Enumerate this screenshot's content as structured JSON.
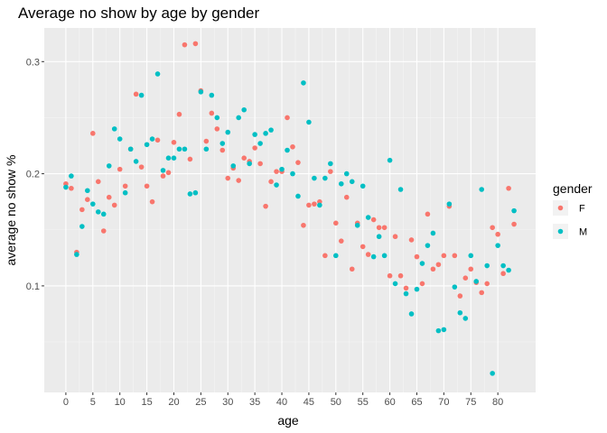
{
  "chart_data": {
    "type": "scatter",
    "title": "Average no show by age by gender",
    "xlabel": "age",
    "ylabel": "average no show %",
    "xlim": [
      -4,
      87
    ],
    "ylim": [
      0.005,
      0.33
    ],
    "x_ticks": [
      0,
      5,
      10,
      15,
      20,
      25,
      30,
      35,
      40,
      45,
      50,
      55,
      60,
      65,
      70,
      75,
      80
    ],
    "x_tick_labels": [
      "0",
      "5",
      "10",
      "15",
      "20",
      "25",
      "30",
      "35",
      "40",
      "45",
      "50",
      "55",
      "60",
      "65",
      "70",
      "75",
      "80"
    ],
    "y_ticks": [
      0.1,
      0.2,
      0.3
    ],
    "y_tick_labels": [
      "0.1",
      "0.2",
      "0.3"
    ],
    "grid": true,
    "legend": {
      "title": "gender",
      "position": "right"
    },
    "series": [
      {
        "name": "F",
        "color": "#F8766D",
        "points": [
          [
            0,
            0.191
          ],
          [
            1,
            0.187
          ],
          [
            2,
            0.13
          ],
          [
            3,
            0.168
          ],
          [
            4,
            0.177
          ],
          [
            5,
            0.236
          ],
          [
            6,
            0.193
          ],
          [
            7,
            0.149
          ],
          [
            8,
            0.179
          ],
          [
            9,
            0.172
          ],
          [
            10,
            0.204
          ],
          [
            11,
            0.189
          ],
          [
            12,
            0.222
          ],
          [
            13,
            0.271
          ],
          [
            14,
            0.206
          ],
          [
            15,
            0.189
          ],
          [
            16,
            0.175
          ],
          [
            17,
            0.23
          ],
          [
            18,
            0.198
          ],
          [
            19,
            0.201
          ],
          [
            20,
            0.228
          ],
          [
            21,
            0.253
          ],
          [
            22,
            0.315
          ],
          [
            23,
            0.213
          ],
          [
            24,
            0.316
          ],
          [
            25,
            0.274
          ],
          [
            26,
            0.229
          ],
          [
            27,
            0.254
          ],
          [
            28,
            0.24
          ],
          [
            29,
            0.221
          ],
          [
            30,
            0.196
          ],
          [
            31,
            0.205
          ],
          [
            32,
            0.194
          ],
          [
            33,
            0.214
          ],
          [
            34,
            0.211
          ],
          [
            35,
            0.223
          ],
          [
            36,
            0.209
          ],
          [
            37,
            0.171
          ],
          [
            38,
            0.193
          ],
          [
            39,
            0.202
          ],
          [
            40,
            0.202
          ],
          [
            41,
            0.25
          ],
          [
            42,
            0.224
          ],
          [
            43,
            0.21
          ],
          [
            44,
            0.154
          ],
          [
            45,
            0.172
          ],
          [
            46,
            0.173
          ],
          [
            47,
            0.175
          ],
          [
            48,
            0.127
          ],
          [
            49,
            0.202
          ],
          [
            50,
            0.156
          ],
          [
            51,
            0.14
          ],
          [
            52,
            0.179
          ],
          [
            53,
            0.115
          ],
          [
            54,
            0.156
          ],
          [
            55,
            0.135
          ],
          [
            56,
            0.128
          ],
          [
            57,
            0.159
          ],
          [
            58,
            0.152
          ],
          [
            59,
            0.152
          ],
          [
            60,
            0.109
          ],
          [
            61,
            0.144
          ],
          [
            62,
            0.109
          ],
          [
            63,
            0.098
          ],
          [
            64,
            0.141
          ],
          [
            65,
            0.126
          ],
          [
            66,
            0.102
          ],
          [
            67,
            0.164
          ],
          [
            68,
            0.115
          ],
          [
            69,
            0.119
          ],
          [
            70,
            0.127
          ],
          [
            71,
            0.171
          ],
          [
            72,
            0.127
          ],
          [
            73,
            0.091
          ],
          [
            74,
            0.107
          ],
          [
            75,
            0.115
          ],
          [
            76,
            0.103
          ],
          [
            77,
            0.094
          ],
          [
            78,
            0.102
          ],
          [
            79,
            0.152
          ],
          [
            80,
            0.146
          ],
          [
            81,
            0.111
          ],
          [
            82,
            0.187
          ],
          [
            83,
            0.155
          ]
        ]
      },
      {
        "name": "M",
        "color": "#00BFC4",
        "points": [
          [
            0,
            0.188
          ],
          [
            1,
            0.198
          ],
          [
            2,
            0.128
          ],
          [
            3,
            0.153
          ],
          [
            4,
            0.185
          ],
          [
            5,
            0.173
          ],
          [
            6,
            0.166
          ],
          [
            7,
            0.164
          ],
          [
            8,
            0.207
          ],
          [
            9,
            0.24
          ],
          [
            10,
            0.231
          ],
          [
            11,
            0.183
          ],
          [
            12,
            0.222
          ],
          [
            13,
            0.211
          ],
          [
            14,
            0.27
          ],
          [
            15,
            0.226
          ],
          [
            16,
            0.231
          ],
          [
            17,
            0.289
          ],
          [
            18,
            0.203
          ],
          [
            19,
            0.214
          ],
          [
            20,
            0.214
          ],
          [
            21,
            0.222
          ],
          [
            22,
            0.222
          ],
          [
            23,
            0.182
          ],
          [
            24,
            0.183
          ],
          [
            25,
            0.273
          ],
          [
            26,
            0.222
          ],
          [
            27,
            0.27
          ],
          [
            28,
            0.25
          ],
          [
            29,
            0.227
          ],
          [
            30,
            0.237
          ],
          [
            31,
            0.207
          ],
          [
            32,
            0.25
          ],
          [
            33,
            0.257
          ],
          [
            34,
            0.209
          ],
          [
            35,
            0.235
          ],
          [
            36,
            0.227
          ],
          [
            37,
            0.236
          ],
          [
            38,
            0.239
          ],
          [
            39,
            0.19
          ],
          [
            40,
            0.204
          ],
          [
            41,
            0.221
          ],
          [
            42,
            0.2
          ],
          [
            43,
            0.18
          ],
          [
            44,
            0.281
          ],
          [
            45,
            0.246
          ],
          [
            46,
            0.196
          ],
          [
            47,
            0.172
          ],
          [
            48,
            0.196
          ],
          [
            49,
            0.209
          ],
          [
            50,
            0.127
          ],
          [
            51,
            0.191
          ],
          [
            52,
            0.2
          ],
          [
            53,
            0.193
          ],
          [
            54,
            0.154
          ],
          [
            55,
            0.189
          ],
          [
            56,
            0.161
          ],
          [
            57,
            0.126
          ],
          [
            58,
            0.144
          ],
          [
            59,
            0.127
          ],
          [
            60,
            0.212
          ],
          [
            61,
            0.102
          ],
          [
            62,
            0.186
          ],
          [
            63,
            0.093
          ],
          [
            64,
            0.075
          ],
          [
            65,
            0.097
          ],
          [
            66,
            0.12
          ],
          [
            67,
            0.136
          ],
          [
            68,
            0.147
          ],
          [
            69,
            0.06
          ],
          [
            70,
            0.061
          ],
          [
            71,
            0.173
          ],
          [
            72,
            0.099
          ],
          [
            73,
            0.076
          ],
          [
            74,
            0.071
          ],
          [
            75,
            0.127
          ],
          [
            76,
            0.104
          ],
          [
            77,
            0.186
          ],
          [
            78,
            0.118
          ],
          [
            79,
            0.022
          ],
          [
            80,
            0.136
          ],
          [
            81,
            0.118
          ],
          [
            82,
            0.114
          ],
          [
            83,
            0.167
          ]
        ]
      }
    ]
  }
}
